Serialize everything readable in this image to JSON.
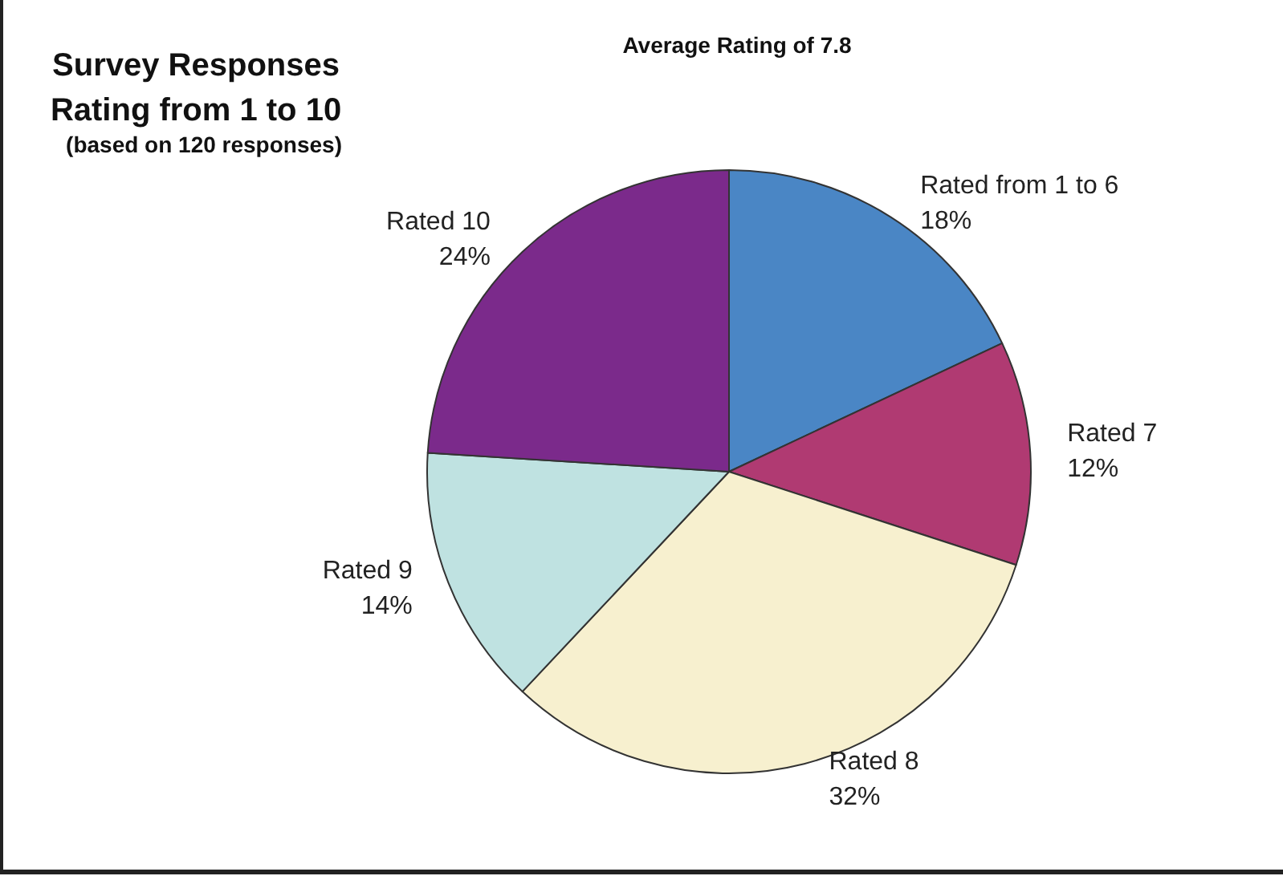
{
  "chart_data": {
    "type": "pie",
    "title": "Survey Responses\nRating from 1 to 10",
    "subtitle": "(based on 120 responses)",
    "annotations": [
      "Average Rating of 7.8"
    ],
    "categories": [
      "Rated from 1 to 6",
      "Rated 7",
      "Rated 8",
      "Rated 9",
      "Rated 10"
    ],
    "values": [
      18,
      12,
      32,
      14,
      24
    ],
    "value_labels": [
      "18%",
      "12%",
      "32%",
      "14%",
      "24%"
    ],
    "colors": [
      "#4a86c5",
      "#b03a72",
      "#f7f0cf",
      "#bfe2e1",
      "#7b2a8b"
    ],
    "legend": false
  }
}
